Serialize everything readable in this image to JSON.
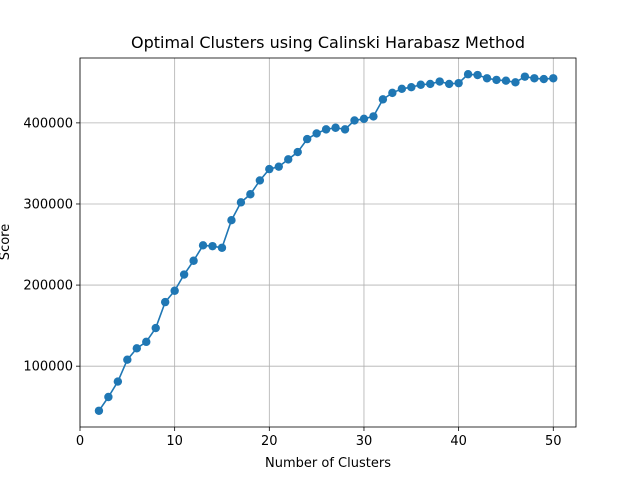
{
  "chart_data": {
    "type": "line",
    "title": "Optimal Clusters using Calinski Harabasz Method",
    "xlabel": "Number of Clusters",
    "ylabel": "Score",
    "xlim": [
      0,
      52.4
    ],
    "ylim": [
      25000,
      480000
    ],
    "xticks": [
      0,
      10,
      20,
      30,
      40,
      50
    ],
    "xtick_labels": [
      "0",
      "10",
      "20",
      "30",
      "40",
      "50"
    ],
    "yticks": [
      100000,
      200000,
      300000,
      400000
    ],
    "ytick_labels": [
      "100000",
      "200000",
      "300000",
      "400000"
    ],
    "grid": true,
    "marker": "circle",
    "color": "#1f77b4",
    "series": [
      {
        "x": [
          2,
          3,
          4,
          5,
          6,
          7,
          8,
          9,
          10,
          11,
          12,
          13,
          14,
          15,
          16,
          17,
          18,
          19,
          20,
          21,
          22,
          23,
          24,
          25,
          26,
          27,
          28,
          29,
          30,
          31,
          32,
          33,
          34,
          35,
          36,
          37,
          38,
          39,
          40,
          41,
          42,
          43,
          44,
          45,
          46,
          47,
          48,
          49,
          50
        ],
        "values": [
          45000,
          62000,
          81000,
          108000,
          122000,
          130000,
          147000,
          179000,
          193000,
          213000,
          230000,
          249000,
          248000,
          246000,
          280000,
          302000,
          312000,
          329000,
          343000,
          346000,
          355000,
          364000,
          380000,
          387000,
          392000,
          394000,
          392000,
          403000,
          405000,
          408000,
          429000,
          437000,
          442000,
          444000,
          447000,
          448000,
          451000,
          448000,
          449000,
          460000,
          459000,
          455000,
          453000,
          452000,
          450000,
          457000,
          455000,
          454000,
          455000
        ]
      }
    ]
  }
}
